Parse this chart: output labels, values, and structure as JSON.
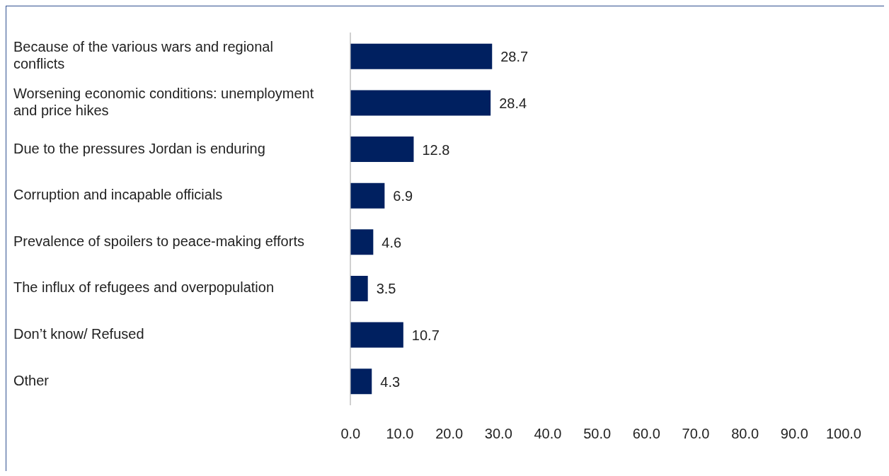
{
  "chart_data": {
    "type": "bar",
    "orientation": "horizontal",
    "categories": [
      "Because of the various wars and regional conflicts",
      "Worsening economic conditions: unemployment and price hikes",
      "Due to the pressures Jordan is enduring",
      "Corruption and incapable officials",
      "Prevalence of spoilers to peace-making efforts",
      "The influx of refugees and overpopulation",
      "Don’t know/ Refused",
      "Other"
    ],
    "values": [
      28.7,
      28.4,
      12.8,
      6.9,
      4.6,
      3.5,
      10.7,
      4.3
    ],
    "color": "#002060",
    "xlim": [
      0,
      100
    ],
    "xticks": [
      {
        "value": 0,
        "label": "0.0"
      },
      {
        "value": 10,
        "label": "10.0"
      },
      {
        "value": 20,
        "label": "20.0"
      },
      {
        "value": 30,
        "label": "30.0"
      },
      {
        "value": 40,
        "label": "40.0"
      },
      {
        "value": 50,
        "label": "50.0"
      },
      {
        "value": 60,
        "label": "60.0"
      },
      {
        "value": 70,
        "label": "70.0"
      },
      {
        "value": 80,
        "label": "80.0"
      },
      {
        "value": 90,
        "label": "90.0"
      },
      {
        "value": 100,
        "label": "100.0"
      }
    ],
    "grid": false,
    "legend": false,
    "data_labels": true
  }
}
